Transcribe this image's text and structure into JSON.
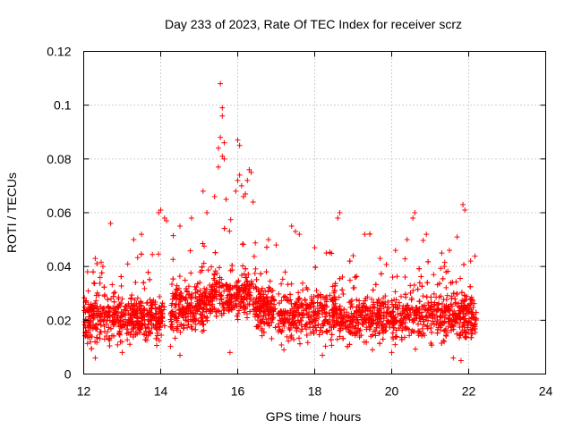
{
  "chart_data": {
    "type": "scatter",
    "title": "Day 233 of 2023, Rate Of TEC Index for receiver scrz",
    "xlabel": "GPS time / hours",
    "ylabel": "ROTI / TECUs",
    "xlim": [
      12,
      24
    ],
    "ylim": [
      0,
      0.12
    ],
    "x_ticks": [
      12,
      14,
      16,
      18,
      20,
      22,
      24
    ],
    "y_ticks": [
      0,
      0.02,
      0.04,
      0.06,
      0.08,
      0.1,
      0.12
    ],
    "x_tick_labels": [
      "12",
      "14",
      "16",
      "18",
      "20",
      "22",
      "24"
    ],
    "y_tick_labels": [
      "0",
      "0.02",
      "0.04",
      "0.06",
      "0.08",
      "0.1",
      "0.12"
    ],
    "grid": true,
    "marker": "+",
    "series": [
      {
        "name": "ROTI",
        "color": "#ff0000",
        "data_extent_x": [
          12.0,
          22.2
        ],
        "typical_range_y": [
          0.01,
          0.04
        ],
        "points": [
          [
            15.55,
            0.108
          ],
          [
            15.6,
            0.099
          ],
          [
            15.6,
            0.096
          ],
          [
            15.55,
            0.088
          ],
          [
            15.65,
            0.086
          ],
          [
            15.5,
            0.084
          ],
          [
            16.0,
            0.087
          ],
          [
            16.05,
            0.085
          ],
          [
            15.6,
            0.081
          ],
          [
            15.65,
            0.08
          ],
          [
            15.5,
            0.077
          ],
          [
            16.05,
            0.074
          ],
          [
            16.0,
            0.072
          ],
          [
            16.1,
            0.07
          ],
          [
            15.95,
            0.068
          ],
          [
            16.2,
            0.067
          ],
          [
            16.3,
            0.076
          ],
          [
            16.35,
            0.075
          ],
          [
            16.25,
            0.072
          ],
          [
            16.15,
            0.066
          ],
          [
            15.1,
            0.068
          ],
          [
            15.4,
            0.066
          ],
          [
            15.7,
            0.065
          ],
          [
            16.4,
            0.064
          ],
          [
            21.85,
            0.063
          ],
          [
            21.9,
            0.061
          ],
          [
            14.0,
            0.061
          ],
          [
            13.95,
            0.06
          ],
          [
            14.1,
            0.058
          ],
          [
            14.15,
            0.057
          ],
          [
            12.7,
            0.056
          ],
          [
            20.6,
            0.06
          ],
          [
            20.55,
            0.058
          ],
          [
            18.65,
            0.06
          ],
          [
            18.6,
            0.058
          ],
          [
            15.2,
            0.06
          ],
          [
            14.8,
            0.058
          ],
          [
            14.5,
            0.055
          ],
          [
            17.4,
            0.055
          ],
          [
            17.5,
            0.053
          ],
          [
            17.6,
            0.052
          ],
          [
            19.3,
            0.052
          ],
          [
            20.9,
            0.052
          ],
          [
            20.4,
            0.05
          ],
          [
            21.7,
            0.051
          ],
          [
            22.05,
            0.042
          ],
          [
            13.5,
            0.052
          ],
          [
            13.3,
            0.05
          ],
          [
            12.3,
            0.043
          ],
          [
            12.5,
            0.04
          ],
          [
            16.8,
            0.05
          ],
          [
            17.0,
            0.048
          ],
          [
            18.0,
            0.047
          ],
          [
            18.3,
            0.045
          ],
          [
            19.0,
            0.044
          ],
          [
            19.7,
            0.043
          ],
          [
            20.1,
            0.046
          ],
          [
            21.3,
            0.045
          ],
          [
            21.5,
            0.046
          ],
          [
            12.1,
            0.038
          ],
          [
            21.8,
            0.005
          ],
          [
            21.6,
            0.006
          ],
          [
            12.3,
            0.006
          ],
          [
            14.5,
            0.007
          ],
          [
            18.2,
            0.007
          ],
          [
            20.0,
            0.008
          ],
          [
            17.2,
            0.009
          ],
          [
            13.0,
            0.008
          ],
          [
            15.8,
            0.008
          ],
          [
            19.5,
            0.009
          ]
        ]
      }
    ]
  }
}
